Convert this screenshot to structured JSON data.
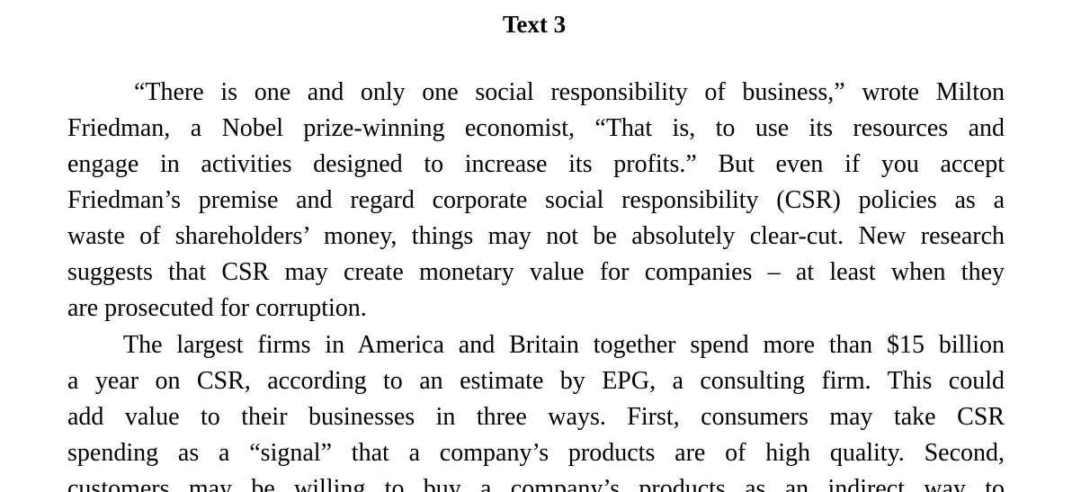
{
  "title": "Text 3",
  "paragraphs": [
    {
      "lines": [
        "“There is one and only one social responsibility of business,” wrote Milton",
        "Friedman, a Nobel prize-winning economist, “That is, to use its resources and",
        "engage in activities designed to increase its profits.” But even if you accept",
        "Friedman’s premise and regard corporate social responsibility (CSR) policies as a",
        "waste of shareholders’ money, things may not be absolutely clear-cut.  New research",
        "suggests that CSR may create monetary value for  companies  – at  least when they",
        "are prosecuted for corruption."
      ]
    },
    {
      "lines": [
        "The largest firms in America and Britain together spend more  than $15 billion",
        "a year on CSR, according to an estimate by  EPG,  a consulting firm. This could",
        "add value to their businesses in three ways. First, consumers may  take  CSR",
        "spending as a “signal” that a company’s products are of high quality. Second,",
        "customers may be willing to buy a company’s products as  an  indirect  way  to"
      ]
    }
  ]
}
